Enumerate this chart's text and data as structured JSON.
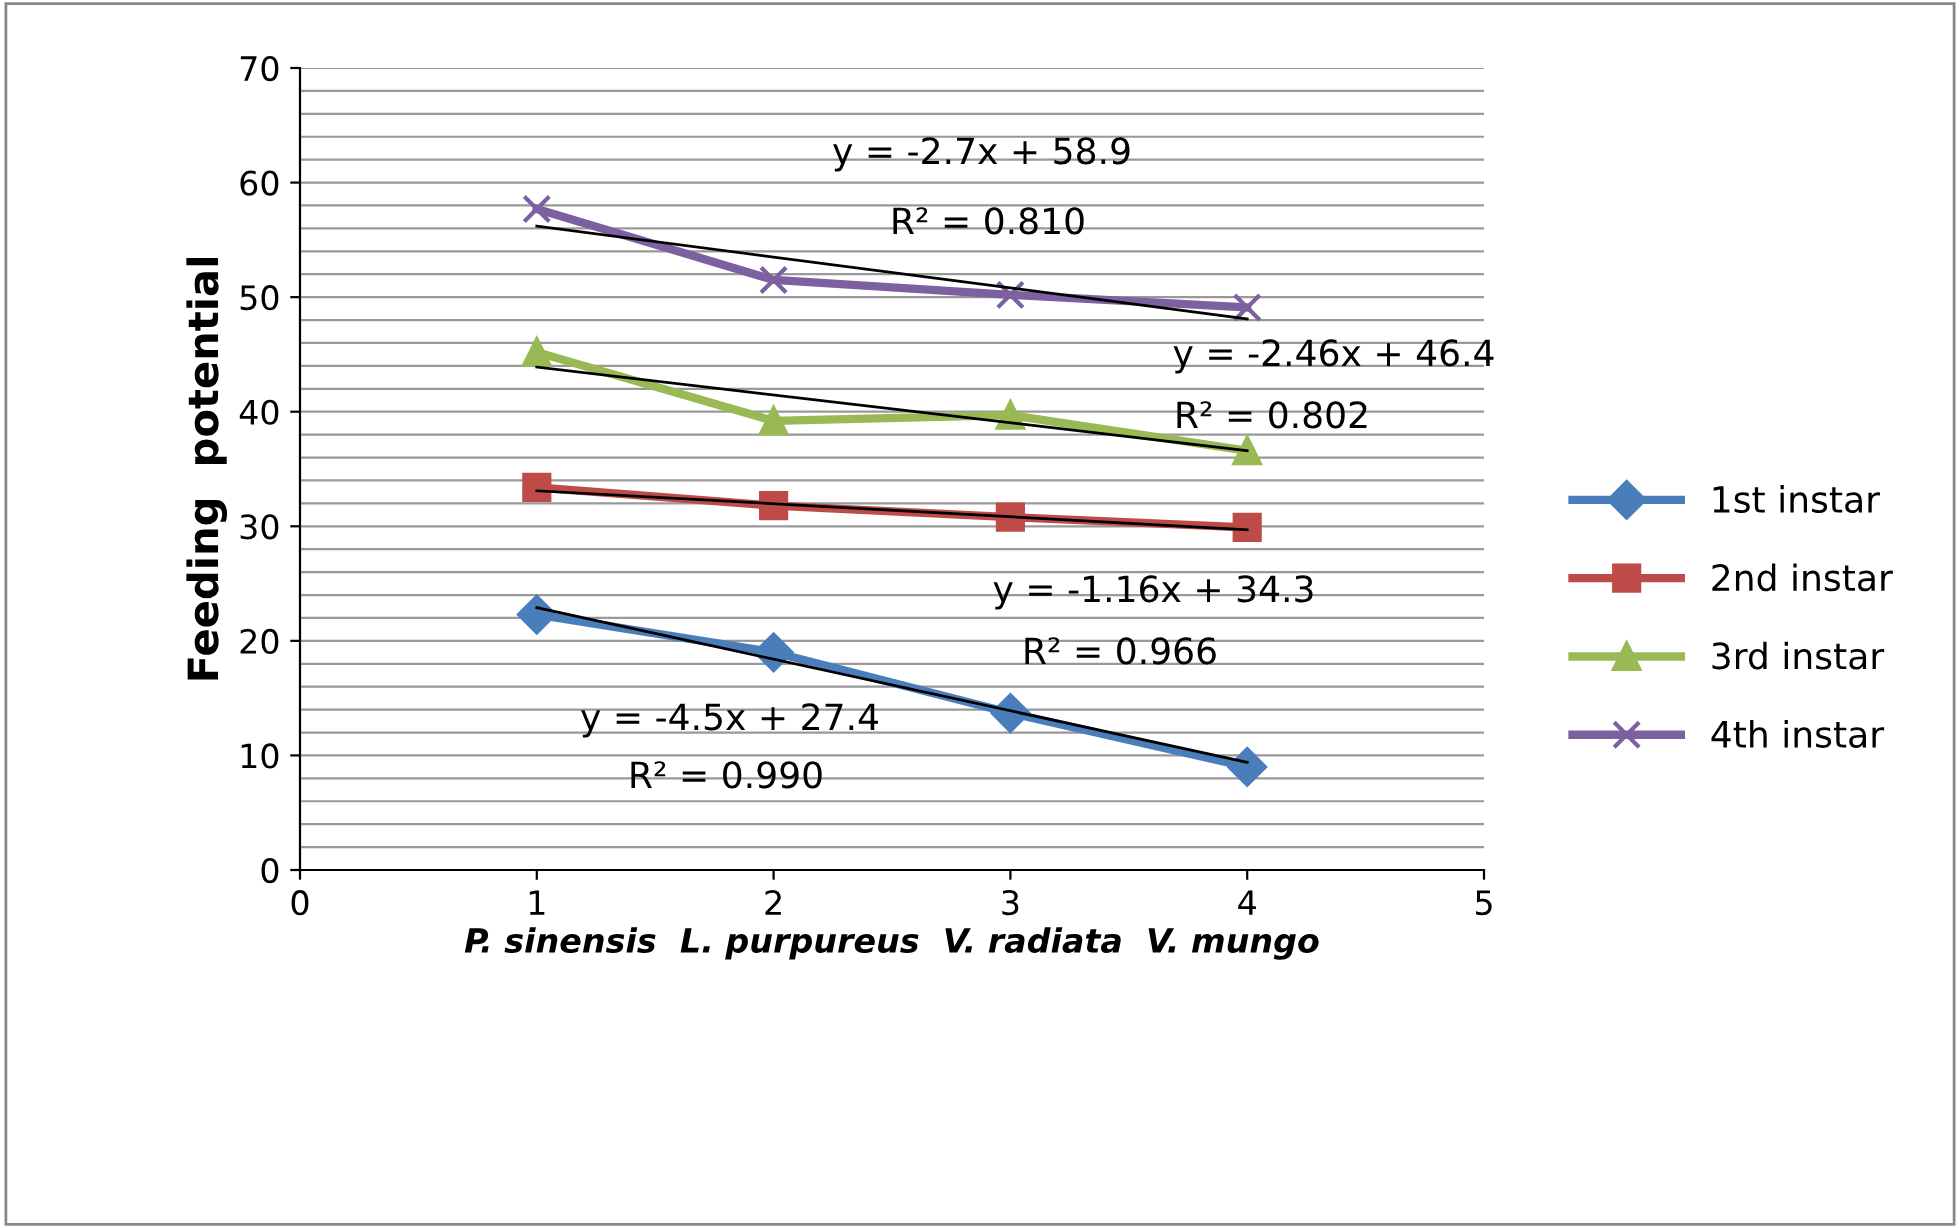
{
  "chart_data": {
    "type": "line",
    "ylabel": "Feeding  potential",
    "xlabel": "P. sinensis  L. purpureus  V. radiata  V. mungo",
    "xlim": [
      0,
      5
    ],
    "xticks": [
      0,
      1,
      2,
      3,
      4,
      5
    ],
    "ylim": [
      0,
      70
    ],
    "yticks": [
      0,
      {
        "value": 2,
        "label": null
      },
      {
        "value": 4,
        "label": null
      },
      {
        "value": 6,
        "label": null
      },
      {
        "value": 8,
        "label": null
      },
      10,
      {
        "value": 12,
        "label": null
      },
      {
        "value": 14,
        "label": null
      },
      {
        "value": 16,
        "label": null
      },
      {
        "value": 18,
        "label": null
      },
      20,
      {
        "value": 22,
        "label": null
      },
      {
        "value": 24,
        "label": null
      },
      {
        "value": 26,
        "label": null
      },
      {
        "value": 28,
        "label": null
      },
      30,
      {
        "value": 32,
        "label": null
      },
      {
        "value": 34,
        "label": null
      },
      {
        "value": 36,
        "label": null
      },
      {
        "value": 38,
        "label": null
      },
      40,
      {
        "value": 42,
        "label": null
      },
      {
        "value": 44,
        "label": null
      },
      {
        "value": 46,
        "label": null
      },
      {
        "value": 48,
        "label": null
      },
      50,
      {
        "value": 52,
        "label": null
      },
      {
        "value": 54,
        "label": null
      },
      {
        "value": 56,
        "label": null
      },
      {
        "value": 58,
        "label": null
      },
      60,
      {
        "value": 62,
        "label": null
      },
      {
        "value": 64,
        "label": null
      },
      {
        "value": 66,
        "label": null
      },
      {
        "value": 68,
        "label": null
      },
      70
    ],
    "grid": "y",
    "legend": "right",
    "series": [
      {
        "name": "1st instar",
        "color": "#4a7ebb",
        "marker": "diamond",
        "x": [
          1,
          2,
          3,
          4
        ],
        "values": [
          22.3,
          19.0,
          13.7,
          9.0
        ]
      },
      {
        "name": "2nd instar",
        "color": "#be4b48",
        "marker": "square",
        "x": [
          1,
          2,
          3,
          4
        ],
        "values": [
          33.4,
          31.8,
          30.8,
          29.9
        ]
      },
      {
        "name": "3rd instar",
        "color": "#98b954",
        "marker": "triangle",
        "x": [
          1,
          2,
          3,
          4
        ],
        "values": [
          45.2,
          39.2,
          39.7,
          36.6
        ]
      },
      {
        "name": "4th instar",
        "color": "#7d60a0",
        "marker": "cross",
        "x": [
          1,
          2,
          3,
          4
        ],
        "values": [
          57.7,
          51.5,
          50.2,
          49.1
        ]
      },
      {
        "type": "line",
        "color": "#000000",
        "marker": "none",
        "x": [
          1,
          4
        ],
        "values": [
          22.9,
          9.4
        ]
      },
      {
        "type": "line",
        "color": "#000000",
        "marker": "none",
        "x": [
          1,
          4
        ],
        "values": [
          33.1,
          29.7
        ]
      },
      {
        "type": "line",
        "color": "#000000",
        "marker": "none",
        "x": [
          1,
          4
        ],
        "values": [
          43.9,
          36.6
        ]
      },
      {
        "type": "line",
        "color": "#000000",
        "marker": "none",
        "x": [
          1,
          4
        ],
        "values": [
          56.2,
          48.1
        ]
      }
    ],
    "annotations": [
      "y = -2.7x + 58.9",
      "R² = 0.810",
      "y = -2.46x + 46.4",
      "R² = 0.802",
      "y = -1.16x + 34.3",
      "R² = 0.966",
      "y = -4.5x + 27.4",
      "R² = 0.990"
    ]
  }
}
